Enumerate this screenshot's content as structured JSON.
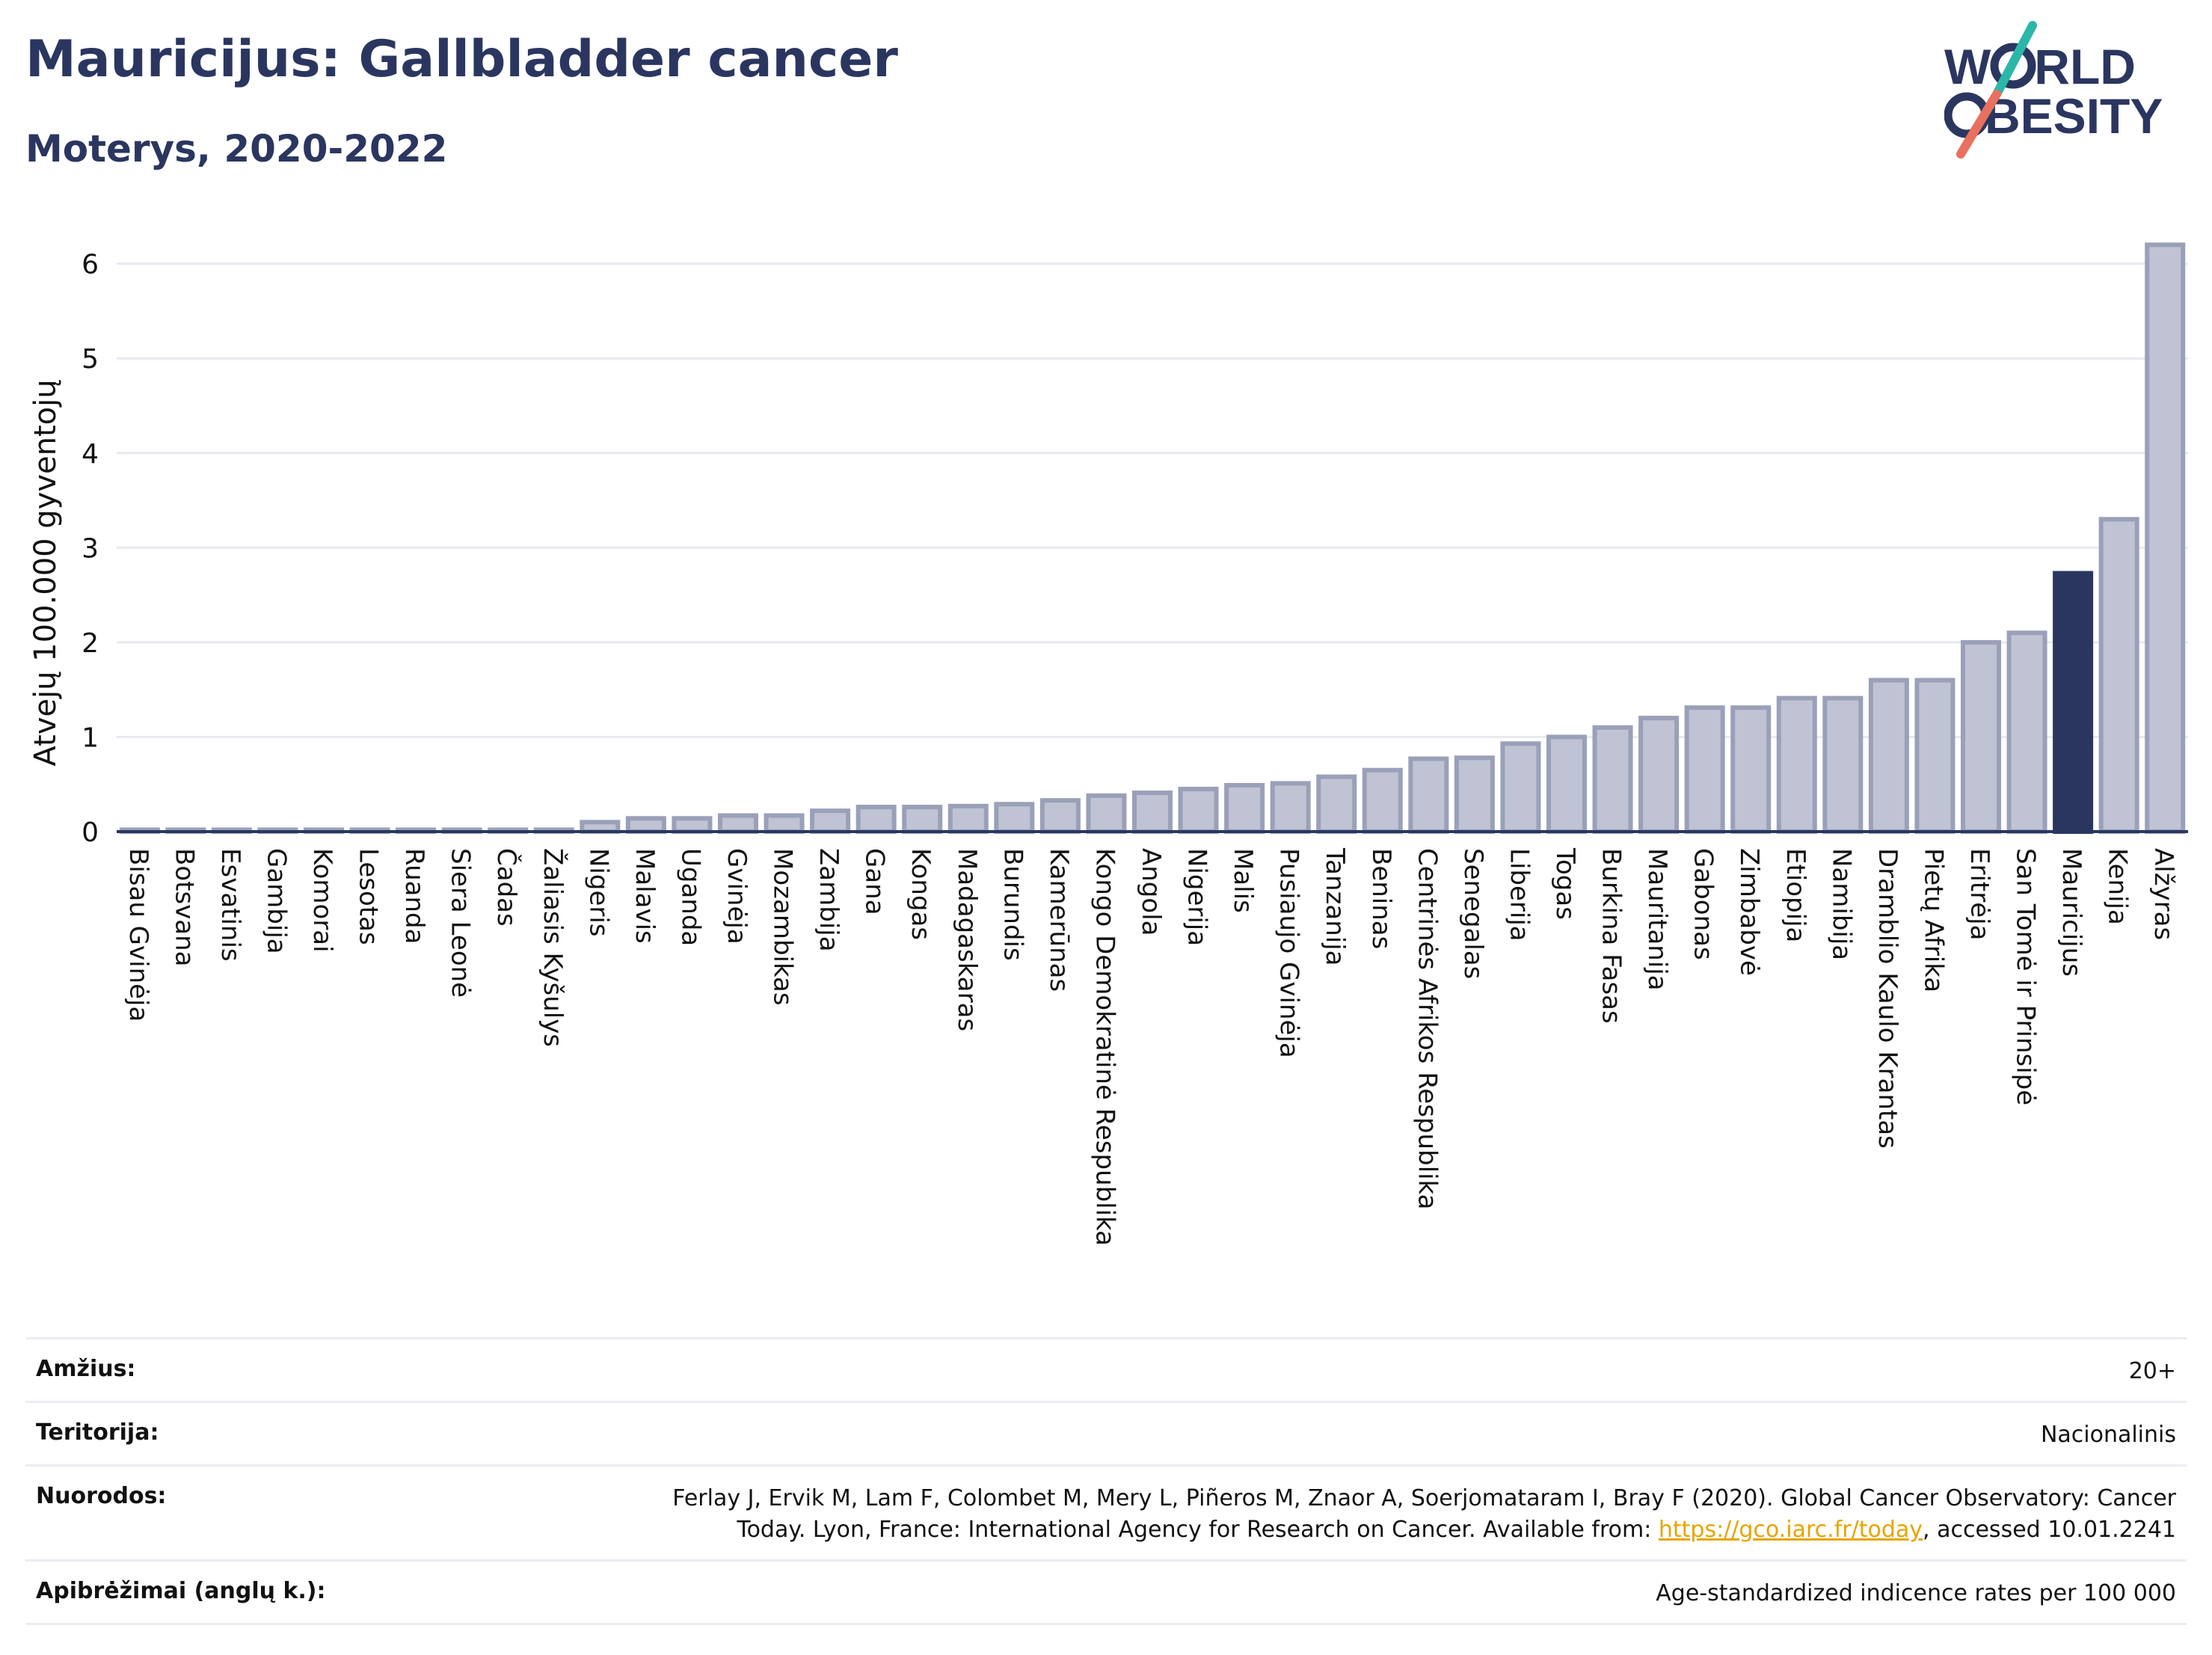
{
  "title": "Mauricijus: Gallbladder cancer",
  "subtitle": "Moterys, 2020-2022",
  "logo": {
    "line1": "W",
    "line1b": "RLD",
    "line2": "BESITY",
    "colors": {
      "navy": "#2b3660",
      "teal": "#2bb7a8",
      "coral": "#e8705f"
    }
  },
  "chart_data": {
    "type": "bar",
    "ylabel": "Atvejų 100.000 gyventojų",
    "ylim": [
      0,
      6.4
    ],
    "yticks": [
      0,
      1,
      2,
      3,
      4,
      5,
      6
    ],
    "grid": true,
    "highlight": "Mauricijus",
    "colors": {
      "bar": "#bfc3d3",
      "bar_stroke": "#9aa0b8",
      "highlight": "#2b3660"
    },
    "categories": [
      "Bisau Gvinėja",
      "Botsvana",
      "Esvatinis",
      "Gambija",
      "Komorai",
      "Lesotas",
      "Ruanda",
      "Siera Leonė",
      "Čadas",
      "Žaliasis Kyšulys",
      "Nigeris",
      "Malavis",
      "Uganda",
      "Gvinėja",
      "Mozambikas",
      "Zambija",
      "Gana",
      "Kongas",
      "Madagaskaras",
      "Burundis",
      "Kamerūnas",
      "Kongo Demokratinė Respublika",
      "Angola",
      "Nigerija",
      "Malis",
      "Pusiaujo Gvinėja",
      "Tanzanija",
      "Beninas",
      "Centrinės Afrikos Respublika",
      "Senegalas",
      "Liberija",
      "Togas",
      "Burkina Fasas",
      "Mauritanija",
      "Gabonas",
      "Zimbabvė",
      "Etiopija",
      "Namibija",
      "Dramblio Kaulo Krantas",
      "Pietų Afrika",
      "Eritrėja",
      "San Tomė ir Prinsipė",
      "Mauricijus",
      "Kenija",
      "Alžyras"
    ],
    "values": [
      0.02,
      0.02,
      0.02,
      0.02,
      0.02,
      0.02,
      0.02,
      0.02,
      0.02,
      0.02,
      0.1,
      0.14,
      0.14,
      0.17,
      0.17,
      0.22,
      0.26,
      0.26,
      0.27,
      0.29,
      0.33,
      0.38,
      0.41,
      0.45,
      0.49,
      0.51,
      0.58,
      0.65,
      0.77,
      0.78,
      0.93,
      1.0,
      1.1,
      1.2,
      1.31,
      1.31,
      1.41,
      1.41,
      1.6,
      1.6,
      2.0,
      2.1,
      2.73,
      3.3,
      6.2
    ]
  },
  "meta": [
    {
      "label": "Amžius:",
      "value": "20+"
    },
    {
      "label": "Teritorija:",
      "value": "Nacionalinis"
    },
    {
      "label": "Nuorodos:",
      "value_pre": "Ferlay J, Ervik M, Lam F, Colombet M, Mery L, Piñeros M, Znaor A, Soerjomataram I, Bray F (2020). Global Cancer Observatory: Cancer Today. Lyon, France: International Agency for Research on Cancer. Available from: ",
      "link": "https://gco.iarc.fr/today",
      "value_post": ", accessed 10.01.2241"
    },
    {
      "label": "Apibrėžimai (anglų k.):",
      "value": "Age-standardized indicence rates per 100 000"
    }
  ]
}
